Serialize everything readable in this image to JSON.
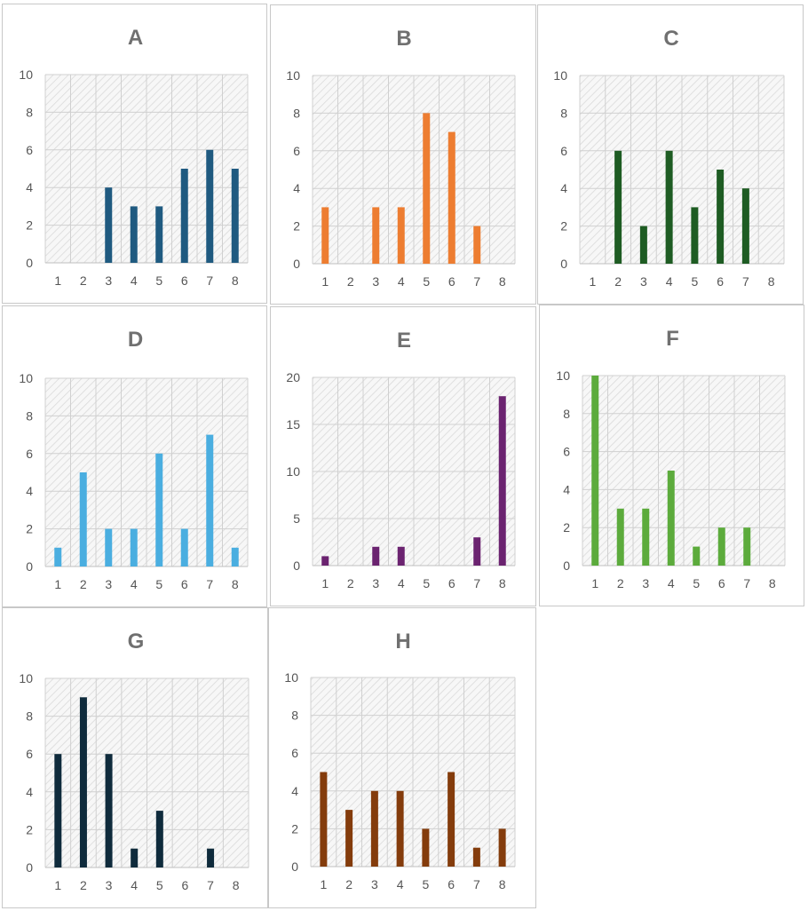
{
  "chart_data": [
    {
      "type": "bar",
      "title": "A",
      "categories": [
        "1",
        "2",
        "3",
        "4",
        "5",
        "6",
        "7",
        "8"
      ],
      "values": [
        0,
        0,
        4,
        3,
        3,
        5,
        6,
        5
      ],
      "ylim": [
        0,
        10
      ],
      "yticks": [
        0,
        2,
        4,
        6,
        8,
        10
      ],
      "color": "#1f5a80",
      "grid": true
    },
    {
      "type": "bar",
      "title": "B",
      "categories": [
        "1",
        "2",
        "3",
        "4",
        "5",
        "6",
        "7",
        "8"
      ],
      "values": [
        3,
        0,
        3,
        3,
        8,
        7,
        2,
        0
      ],
      "ylim": [
        0,
        10
      ],
      "yticks": [
        0,
        2,
        4,
        6,
        8,
        10
      ],
      "color": "#ed7d31",
      "grid": true
    },
    {
      "type": "bar",
      "title": "C",
      "categories": [
        "1",
        "2",
        "3",
        "4",
        "5",
        "6",
        "7",
        "8"
      ],
      "values": [
        0,
        6,
        2,
        6,
        3,
        5,
        4,
        0
      ],
      "ylim": [
        0,
        10
      ],
      "yticks": [
        0,
        2,
        4,
        6,
        8,
        10
      ],
      "color": "#1e5c23",
      "grid": true
    },
    {
      "type": "bar",
      "title": "D",
      "categories": [
        "1",
        "2",
        "3",
        "4",
        "5",
        "6",
        "7",
        "8"
      ],
      "values": [
        1,
        5,
        2,
        2,
        6,
        2,
        7,
        1
      ],
      "ylim": [
        0,
        10
      ],
      "yticks": [
        0,
        2,
        4,
        6,
        8,
        10
      ],
      "color": "#4aaee0",
      "grid": true
    },
    {
      "type": "bar",
      "title": "E",
      "categories": [
        "1",
        "2",
        "3",
        "4",
        "5",
        "6",
        "7",
        "8"
      ],
      "values": [
        1,
        0,
        2,
        2,
        0,
        0,
        3,
        18
      ],
      "ylim": [
        0,
        20
      ],
      "yticks": [
        0,
        5,
        10,
        15,
        20
      ],
      "color": "#6b2370",
      "grid": true
    },
    {
      "type": "bar",
      "title": "F",
      "categories": [
        "1",
        "2",
        "3",
        "4",
        "5",
        "6",
        "7",
        "8"
      ],
      "values": [
        10,
        3,
        3,
        5,
        1,
        2,
        2,
        0
      ],
      "ylim": [
        0,
        10
      ],
      "yticks": [
        0,
        2,
        4,
        6,
        8,
        10
      ],
      "color": "#5cab3c",
      "grid": true
    },
    {
      "type": "bar",
      "title": "G",
      "categories": [
        "1",
        "2",
        "3",
        "4",
        "5",
        "6",
        "7",
        "8"
      ],
      "values": [
        6,
        9,
        6,
        1,
        3,
        0,
        1,
        0
      ],
      "ylim": [
        0,
        10
      ],
      "yticks": [
        0,
        2,
        4,
        6,
        8,
        10
      ],
      "color": "#0f2b3c",
      "grid": true
    },
    {
      "type": "bar",
      "title": "H",
      "categories": [
        "1",
        "2",
        "3",
        "4",
        "5",
        "6",
        "7",
        "8"
      ],
      "values": [
        5,
        3,
        4,
        4,
        2,
        5,
        1,
        2
      ],
      "ylim": [
        0,
        10
      ],
      "yticks": [
        0,
        2,
        4,
        6,
        8,
        10
      ],
      "color": "#843c0c",
      "grid": true
    }
  ]
}
